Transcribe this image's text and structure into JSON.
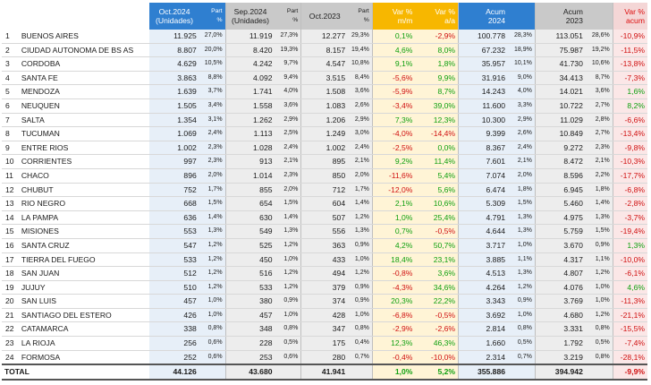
{
  "header": {
    "oct2024": "Oct.2024",
    "oct2024_sub": "(Unidades)",
    "part": "Part",
    "pct": "%",
    "sep2024": "Sep.2024",
    "sep2024_sub": "(Unidades)",
    "oct2023": "Oct.2023",
    "var_mm": "Var %",
    "var_mm_sub": "m/m",
    "var_aa": "Var %",
    "var_aa_sub": "a/a",
    "acum2024": "Acum",
    "acum2024_sub": "2024",
    "acum2023": "Acum",
    "acum2023_sub": "2023",
    "var_acum": "Var %",
    "var_acum_sub": "acum"
  },
  "rows": [
    {
      "n": "1",
      "name": "BUENOS AIRES",
      "oct24": "11.925",
      "p1": "27,0%",
      "sep24": "11.919",
      "p2": "27,3%",
      "oct23": "12.277",
      "p3": "29,3%",
      "mm": "0,1%",
      "aa": "-2,9%",
      "acum24": "100.778",
      "p4": "28,3%",
      "acum23": "113.051",
      "p5": "28,6%",
      "vacum": "-10,9%"
    },
    {
      "n": "2",
      "name": "CIUDAD AUTONOMA DE BS AS",
      "oct24": "8.807",
      "p1": "20,0%",
      "sep24": "8.420",
      "p2": "19,3%",
      "oct23": "8.157",
      "p3": "19,4%",
      "mm": "4,6%",
      "aa": "8,0%",
      "acum24": "67.232",
      "p4": "18,9%",
      "acum23": "75.987",
      "p5": "19,2%",
      "vacum": "-11,5%"
    },
    {
      "n": "3",
      "name": "CORDOBA",
      "oct24": "4.629",
      "p1": "10,5%",
      "sep24": "4.242",
      "p2": "9,7%",
      "oct23": "4.547",
      "p3": "10,8%",
      "mm": "9,1%",
      "aa": "1,8%",
      "acum24": "35.957",
      "p4": "10,1%",
      "acum23": "41.730",
      "p5": "10,6%",
      "vacum": "-13,8%"
    },
    {
      "n": "4",
      "name": "SANTA FE",
      "oct24": "3.863",
      "p1": "8,8%",
      "sep24": "4.092",
      "p2": "9,4%",
      "oct23": "3.515",
      "p3": "8,4%",
      "mm": "-5,6%",
      "aa": "9,9%",
      "acum24": "31.916",
      "p4": "9,0%",
      "acum23": "34.413",
      "p5": "8,7%",
      "vacum": "-7,3%"
    },
    {
      "n": "5",
      "name": "MENDOZA",
      "oct24": "1.639",
      "p1": "3,7%",
      "sep24": "1.741",
      "p2": "4,0%",
      "oct23": "1.508",
      "p3": "3,6%",
      "mm": "-5,9%",
      "aa": "8,7%",
      "acum24": "14.243",
      "p4": "4,0%",
      "acum23": "14.021",
      "p5": "3,6%",
      "vacum": "1,6%"
    },
    {
      "n": "6",
      "name": "NEUQUEN",
      "oct24": "1.505",
      "p1": "3,4%",
      "sep24": "1.558",
      "p2": "3,6%",
      "oct23": "1.083",
      "p3": "2,6%",
      "mm": "-3,4%",
      "aa": "39,0%",
      "acum24": "11.600",
      "p4": "3,3%",
      "acum23": "10.722",
      "p5": "2,7%",
      "vacum": "8,2%"
    },
    {
      "n": "7",
      "name": "SALTA",
      "oct24": "1.354",
      "p1": "3,1%",
      "sep24": "1.262",
      "p2": "2,9%",
      "oct23": "1.206",
      "p3": "2,9%",
      "mm": "7,3%",
      "aa": "12,3%",
      "acum24": "10.300",
      "p4": "2,9%",
      "acum23": "11.029",
      "p5": "2,8%",
      "vacum": "-6,6%"
    },
    {
      "n": "8",
      "name": "TUCUMAN",
      "oct24": "1.069",
      "p1": "2,4%",
      "sep24": "1.113",
      "p2": "2,5%",
      "oct23": "1.249",
      "p3": "3,0%",
      "mm": "-4,0%",
      "aa": "-14,4%",
      "acum24": "9.399",
      "p4": "2,6%",
      "acum23": "10.849",
      "p5": "2,7%",
      "vacum": "-13,4%"
    },
    {
      "n": "9",
      "name": "ENTRE RIOS",
      "oct24": "1.002",
      "p1": "2,3%",
      "sep24": "1.028",
      "p2": "2,4%",
      "oct23": "1.002",
      "p3": "2,4%",
      "mm": "-2,5%",
      "aa": "0,0%",
      "acum24": "8.367",
      "p4": "2,4%",
      "acum23": "9.272",
      "p5": "2,3%",
      "vacum": "-9,8%"
    },
    {
      "n": "10",
      "name": "CORRIENTES",
      "oct24": "997",
      "p1": "2,3%",
      "sep24": "913",
      "p2": "2,1%",
      "oct23": "895",
      "p3": "2,1%",
      "mm": "9,2%",
      "aa": "11,4%",
      "acum24": "7.601",
      "p4": "2,1%",
      "acum23": "8.472",
      "p5": "2,1%",
      "vacum": "-10,3%"
    },
    {
      "n": "11",
      "name": "CHACO",
      "oct24": "896",
      "p1": "2,0%",
      "sep24": "1.014",
      "p2": "2,3%",
      "oct23": "850",
      "p3": "2,0%",
      "mm": "-11,6%",
      "aa": "5,4%",
      "acum24": "7.074",
      "p4": "2,0%",
      "acum23": "8.596",
      "p5": "2,2%",
      "vacum": "-17,7%"
    },
    {
      "n": "12",
      "name": "CHUBUT",
      "oct24": "752",
      "p1": "1,7%",
      "sep24": "855",
      "p2": "2,0%",
      "oct23": "712",
      "p3": "1,7%",
      "mm": "-12,0%",
      "aa": "5,6%",
      "acum24": "6.474",
      "p4": "1,8%",
      "acum23": "6.945",
      "p5": "1,8%",
      "vacum": "-6,8%"
    },
    {
      "n": "13",
      "name": "RIO NEGRO",
      "oct24": "668",
      "p1": "1,5%",
      "sep24": "654",
      "p2": "1,5%",
      "oct23": "604",
      "p3": "1,4%",
      "mm": "2,1%",
      "aa": "10,6%",
      "acum24": "5.309",
      "p4": "1,5%",
      "acum23": "5.460",
      "p5": "1,4%",
      "vacum": "-2,8%"
    },
    {
      "n": "14",
      "name": "LA PAMPA",
      "oct24": "636",
      "p1": "1,4%",
      "sep24": "630",
      "p2": "1,4%",
      "oct23": "507",
      "p3": "1,2%",
      "mm": "1,0%",
      "aa": "25,4%",
      "acum24": "4.791",
      "p4": "1,3%",
      "acum23": "4.975",
      "p5": "1,3%",
      "vacum": "-3,7%"
    },
    {
      "n": "15",
      "name": "MISIONES",
      "oct24": "553",
      "p1": "1,3%",
      "sep24": "549",
      "p2": "1,3%",
      "oct23": "556",
      "p3": "1,3%",
      "mm": "0,7%",
      "aa": "-0,5%",
      "acum24": "4.644",
      "p4": "1,3%",
      "acum23": "5.759",
      "p5": "1,5%",
      "vacum": "-19,4%"
    },
    {
      "n": "16",
      "name": "SANTA CRUZ",
      "oct24": "547",
      "p1": "1,2%",
      "sep24": "525",
      "p2": "1,2%",
      "oct23": "363",
      "p3": "0,9%",
      "mm": "4,2%",
      "aa": "50,7%",
      "acum24": "3.717",
      "p4": "1,0%",
      "acum23": "3.670",
      "p5": "0,9%",
      "vacum": "1,3%"
    },
    {
      "n": "17",
      "name": "TIERRA DEL FUEGO",
      "oct24": "533",
      "p1": "1,2%",
      "sep24": "450",
      "p2": "1,0%",
      "oct23": "433",
      "p3": "1,0%",
      "mm": "18,4%",
      "aa": "23,1%",
      "acum24": "3.885",
      "p4": "1,1%",
      "acum23": "4.317",
      "p5": "1,1%",
      "vacum": "-10,0%"
    },
    {
      "n": "18",
      "name": "SAN JUAN",
      "oct24": "512",
      "p1": "1,2%",
      "sep24": "516",
      "p2": "1,2%",
      "oct23": "494",
      "p3": "1,2%",
      "mm": "-0,8%",
      "aa": "3,6%",
      "acum24": "4.513",
      "p4": "1,3%",
      "acum23": "4.807",
      "p5": "1,2%",
      "vacum": "-6,1%"
    },
    {
      "n": "19",
      "name": "JUJUY",
      "oct24": "510",
      "p1": "1,2%",
      "sep24": "533",
      "p2": "1,2%",
      "oct23": "379",
      "p3": "0,9%",
      "mm": "-4,3%",
      "aa": "34,6%",
      "acum24": "4.264",
      "p4": "1,2%",
      "acum23": "4.076",
      "p5": "1,0%",
      "vacum": "4,6%"
    },
    {
      "n": "20",
      "name": "SAN LUIS",
      "oct24": "457",
      "p1": "1,0%",
      "sep24": "380",
      "p2": "0,9%",
      "oct23": "374",
      "p3": "0,9%",
      "mm": "20,3%",
      "aa": "22,2%",
      "acum24": "3.343",
      "p4": "0,9%",
      "acum23": "3.769",
      "p5": "1,0%",
      "vacum": "-11,3%"
    },
    {
      "n": "21",
      "name": "SANTIAGO DEL ESTERO",
      "oct24": "426",
      "p1": "1,0%",
      "sep24": "457",
      "p2": "1,0%",
      "oct23": "428",
      "p3": "1,0%",
      "mm": "-6,8%",
      "aa": "-0,5%",
      "acum24": "3.692",
      "p4": "1,0%",
      "acum23": "4.680",
      "p5": "1,2%",
      "vacum": "-21,1%"
    },
    {
      "n": "22",
      "name": "CATAMARCA",
      "oct24": "338",
      "p1": "0,8%",
      "sep24": "348",
      "p2": "0,8%",
      "oct23": "347",
      "p3": "0,8%",
      "mm": "-2,9%",
      "aa": "-2,6%",
      "acum24": "2.814",
      "p4": "0,8%",
      "acum23": "3.331",
      "p5": "0,8%",
      "vacum": "-15,5%"
    },
    {
      "n": "23",
      "name": "LA RIOJA",
      "oct24": "256",
      "p1": "0,6%",
      "sep24": "228",
      "p2": "0,5%",
      "oct23": "175",
      "p3": "0,4%",
      "mm": "12,3%",
      "aa": "46,3%",
      "acum24": "1.660",
      "p4": "0,5%",
      "acum23": "1.792",
      "p5": "0,5%",
      "vacum": "-7,4%"
    },
    {
      "n": "24",
      "name": "FORMOSA",
      "oct24": "252",
      "p1": "0,6%",
      "sep24": "253",
      "p2": "0,6%",
      "oct23": "280",
      "p3": "0,7%",
      "mm": "-0,4%",
      "aa": "-10,0%",
      "acum24": "2.314",
      "p4": "0,7%",
      "acum23": "3.219",
      "p5": "0,8%",
      "vacum": "-28,1%"
    }
  ],
  "total": {
    "label": "TOTAL",
    "oct24": "44.126",
    "sep24": "43.680",
    "oct23": "41.941",
    "mm": "1,0%",
    "aa": "5,2%",
    "acum24": "355.886",
    "acum23": "394.942",
    "vacum": "-9,9%"
  },
  "colors": {
    "blue": "#2f7fd0",
    "yellow": "#f7b700",
    "gray": "#c9c9c9",
    "red": "#d01010",
    "green": "#10a010"
  }
}
